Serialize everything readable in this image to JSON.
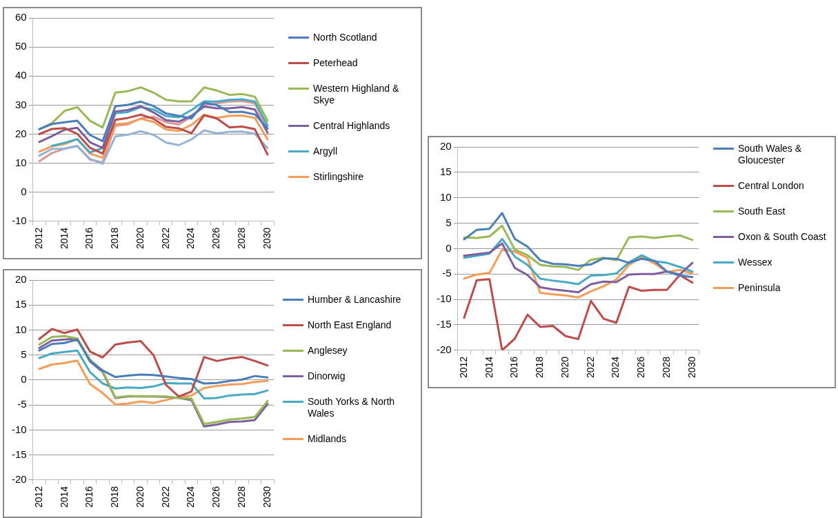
{
  "chart_data": [
    {
      "type": "line",
      "categories": [
        "2012",
        null,
        "2014",
        null,
        "2016",
        null,
        "2018",
        null,
        "2020",
        null,
        "2022",
        null,
        "2024",
        null,
        "2026",
        null,
        "2028",
        null,
        "2030"
      ],
      "ylim": [
        -10,
        60
      ],
      "yticks": [
        -10,
        0,
        10,
        20,
        30,
        40,
        50,
        60
      ],
      "grid": "y",
      "legend": "right",
      "marker": "none",
      "line_style": "solid",
      "series": [
        {
          "name": "North Scotland",
          "color": "#4a7ebb",
          "values": [
            21.7,
            23.5,
            24.1,
            24.6,
            19.7,
            17.6,
            29.6,
            30.1,
            31.2,
            29.7,
            27.1,
            26.3,
            25.4,
            30.8,
            30,
            27.6,
            27.7,
            26.8,
            22
          ]
        },
        {
          "name": "Peterhead",
          "color": "#be4b48",
          "values": [
            20,
            21.8,
            22.1,
            20.1,
            15.3,
            13.3,
            24.9,
            25.6,
            26.7,
            25.3,
            22.5,
            22,
            20.3,
            26.5,
            25.4,
            22.3,
            22.6,
            21.7,
            13
          ]
        },
        {
          "name": "Western Highland & Skye",
          "color": "#98b954",
          "values": [
            21.7,
            23.8,
            28,
            29.3,
            24.6,
            22.3,
            34.3,
            34.8,
            36.1,
            34.3,
            31.8,
            31.3,
            31.3,
            36.1,
            35,
            33.5,
            33.8,
            32.9,
            24.6
          ]
        },
        {
          "name": "Central Highlands",
          "color": "#7d5fa0",
          "values": [
            17.3,
            19.3,
            21.5,
            22.2,
            17.2,
            15.3,
            27.8,
            28.3,
            29.6,
            27.5,
            24.8,
            24.3,
            26.3,
            29.5,
            28.9,
            28.9,
            29.3,
            28.5,
            20.5
          ]
        },
        {
          "name": "Argyll",
          "color": "#46aac5",
          "values": [
            null,
            16,
            17,
            18.3,
            13.7,
            15.2,
            27.2,
            27.6,
            29.3,
            28.5,
            26.2,
            25.8,
            28.3,
            31.3,
            31.2,
            31.8,
            32,
            31.2,
            23
          ]
        },
        {
          "name": "Stirlingshire",
          "color": "#f59d56",
          "values": [
            14,
            15.8,
            16.6,
            18.3,
            13.3,
            11.9,
            23.4,
            23.8,
            25.3,
            24.2,
            21.6,
            21.1,
            23.2,
            26.7,
            25.6,
            26.3,
            26.4,
            25.6,
            18.2
          ]
        },
        {
          "color": "#95b3d7",
          "values": [
            12.6,
            14.9,
            15,
            16,
            11.5,
            9.8,
            19.2,
            19.8,
            21,
            19.8,
            17.1,
            16.2,
            18.2,
            21.3,
            20.3,
            20.8,
            20.9,
            20.1,
            15.2
          ]
        },
        {
          "color": "#d99795",
          "values": [
            10.7,
            13.5,
            15,
            15.9,
            11.2,
            10.3,
            22.9,
            23.4,
            25.4,
            26,
            24.1,
            23.3,
            26,
            30,
            30.6,
            31.2,
            31.4,
            30.6,
            21.8
          ]
        }
      ]
    },
    {
      "type": "line",
      "categories": [
        "2012",
        null,
        "2014",
        null,
        "2016",
        null,
        "2018",
        null,
        "2020",
        null,
        "2022",
        null,
        "2024",
        null,
        "2026",
        null,
        "2028",
        null,
        "2030"
      ],
      "ylim": [
        -20,
        20
      ],
      "yticks": [
        -20,
        -15,
        -10,
        -5,
        0,
        5,
        10,
        15,
        20
      ],
      "grid": "y",
      "legend": "right",
      "marker": "none",
      "line_style": "solid",
      "series": [
        {
          "name": "Humber & Lancashire",
          "color": "#4a7ebb",
          "values": [
            5.9,
            7.2,
            7.4,
            8.1,
            3.8,
            1.9,
            0.6,
            0.9,
            1.1,
            1,
            0.7,
            0.4,
            0.2,
            -0.7,
            -0.6,
            -0.2,
            0.1,
            0.8,
            0.5
          ]
        },
        {
          "name": "North East England",
          "color": "#be4b48",
          "values": [
            8.2,
            10.2,
            9.4,
            10.1,
            5.7,
            4.5,
            7.1,
            7.5,
            7.8,
            5,
            -1,
            -3.3,
            -2.3,
            4.6,
            3.8,
            4.3,
            4.6,
            3.8,
            2.9
          ]
        },
        {
          "name": "Anglesey",
          "color": "#98b954",
          "values": [
            7.1,
            8.6,
            8.8,
            8.3,
            4.1,
            1.8,
            -3.5,
            -3.2,
            -3.3,
            -3.3,
            -3.3,
            -3.6,
            -3.7,
            -8.8,
            -8.4,
            -7.9,
            -7.7,
            -7.4,
            -4.2
          ]
        },
        {
          "name": "Dinorwig",
          "color": "#7d5fa0",
          "values": [
            6.4,
            7.9,
            8.1,
            8.3,
            3.7,
            1.6,
            -3.6,
            -3.3,
            -3.3,
            -3.3,
            -3.4,
            -3.6,
            -4,
            -9.3,
            -8.9,
            -8.4,
            -8.3,
            -8,
            -4.8
          ]
        },
        {
          "name": "South Yorks & North Wales",
          "color": "#46aac5",
          "values": [
            4.4,
            5.3,
            5.6,
            5.9,
            1.6,
            -0.7,
            -1.7,
            -1.5,
            -1.6,
            -1.3,
            -0.6,
            -0.7,
            -0.7,
            -3.7,
            -3.6,
            -3.1,
            -2.9,
            -2.8,
            -2.1
          ]
        },
        {
          "name": "Midlands",
          "color": "#f59d56",
          "values": [
            2.2,
            3.1,
            3.4,
            3.9,
            -0.8,
            -2.6,
            -4.9,
            -4.7,
            -4.3,
            -4.6,
            -4,
            -3.4,
            -3.1,
            -1.6,
            -1.2,
            -0.9,
            -0.8,
            -0.4,
            -0.2
          ]
        }
      ]
    },
    {
      "type": "line",
      "categories": [
        "2012",
        null,
        "2014",
        null,
        "2016",
        null,
        "2018",
        null,
        "2020",
        null,
        "2022",
        null,
        "2024",
        null,
        "2026",
        null,
        "2028",
        null,
        "2030"
      ],
      "ylim": [
        -20,
        20
      ],
      "yticks": [
        -20,
        -15,
        -10,
        -5,
        0,
        5,
        10,
        15,
        20
      ],
      "grid": "y",
      "legend": "right",
      "marker": "none",
      "line_style": "solid",
      "series": [
        {
          "name": "South Wales & Gloucester",
          "color": "#4a7ebb",
          "values": [
            1.8,
            3.7,
            3.9,
            7,
            1.9,
            0.4,
            -2.3,
            -3,
            -3.1,
            -3.4,
            -3.1,
            -1.9,
            -2,
            -2.8,
            -2,
            -2.4,
            -4.5,
            -5.3,
            -5.6
          ]
        },
        {
          "name": "Central London",
          "color": "#be4b48",
          "values": [
            -13.6,
            -6.2,
            -6,
            -20,
            -17.7,
            -13,
            -15.4,
            -15.2,
            -17.2,
            -17.8,
            -10.3,
            -13.8,
            -14.6,
            -7.5,
            -8.3,
            -8.1,
            -8.1,
            -5.2,
            -6.7
          ]
        },
        {
          "name": "South East",
          "color": "#98b954",
          "values": [
            2.2,
            2.1,
            2.4,
            4.5,
            -0.2,
            -1.3,
            -3.2,
            -3.5,
            -3.6,
            -4.2,
            -2.2,
            -1.8,
            -2.3,
            2.2,
            2.4,
            2.1,
            2.4,
            2.6,
            1.7
          ]
        },
        {
          "name": "Oxon & South Coast",
          "color": "#7d5fa0",
          "values": [
            -1.4,
            -1.1,
            -0.8,
            1,
            -3.8,
            -5.2,
            -7.6,
            -8,
            -8.3,
            -8.6,
            -7,
            -6.5,
            -6.6,
            -5.1,
            -5,
            -5,
            -4.5,
            -5.1,
            -2.8
          ]
        },
        {
          "name": "Wessex",
          "color": "#46aac5",
          "values": [
            -1.8,
            -1.4,
            -1,
            1.9,
            -1.6,
            -3.2,
            -5.9,
            -6.3,
            -6.6,
            -7,
            -5.3,
            -5.2,
            -4.9,
            -2.7,
            -1.3,
            -2.5,
            -2.8,
            -3.6,
            -4.5
          ]
        },
        {
          "name": "Peninsula",
          "color": "#f59d56",
          "values": [
            -5.9,
            -5.1,
            -4.8,
            -0.2,
            -0.6,
            -1.8,
            -8.7,
            -9,
            -9.2,
            -9.6,
            -8.4,
            -7.4,
            -6.1,
            -3.2,
            -1.6,
            -2.9,
            -4.6,
            -4.2,
            -4.9
          ]
        }
      ]
    }
  ]
}
